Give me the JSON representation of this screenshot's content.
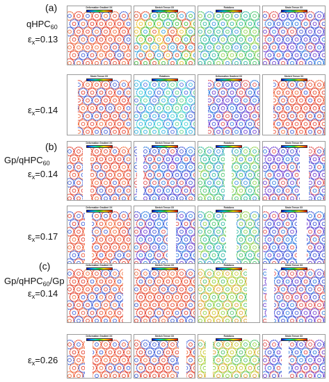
{
  "labels": {
    "a": "(a)",
    "b": "(b)",
    "c": "(c)",
    "a_name": "qHPC",
    "a_sub": "60",
    "a_strain1_sym": "ε",
    "a_strain1_sub": "x",
    "a_strain1_val": "=0.13",
    "a_strain2_sym": "ε",
    "a_strain2_sub": "x",
    "a_strain2_val": "=0.14",
    "b_name_pre": "Gp/qHPC",
    "b_sub": "60",
    "b_strain1_sym": "ε",
    "b_strain1_sub": "x",
    "b_strain1_val": "=0.14",
    "b_strain2_sym": "ε",
    "b_strain2_sub": "x",
    "b_strain2_val": "=0.17",
    "c_name_pre": "Gp/qHPC",
    "c_sub": "60",
    "c_name_post": "/Gp",
    "c_strain1_sym": "ε",
    "c_strain1_sub": "x",
    "c_strain1_val": "=0.14",
    "c_strain2_sym": "ε",
    "c_strain2_sub": "x",
    "c_strain2_val": "=0.26"
  },
  "rows": [
    {
      "titles": [
        "Deformation Gradient XX",
        "Stretch Tensor XX",
        "Rotations",
        "Strain Tensor XX"
      ],
      "themes": [
        "red",
        "green",
        "teal",
        "blue"
      ]
    },
    {
      "titles": [
        "Strain Tensor XX",
        "Rotations",
        "Deformation Gradient XX",
        "Stretch Tensor XX"
      ],
      "themes": [
        "red",
        "cyan",
        "blue",
        "red"
      ]
    },
    {
      "titles": [
        "Deformation Gradient XX",
        "Stretch Tensor XX",
        "Rotations",
        "Strain Tensor XX"
      ],
      "themes": [
        "red",
        "blue",
        "teal",
        "blue"
      ]
    },
    {
      "titles": [
        "Deformation Gradient XX",
        "Stretch Tensor XX",
        "Rotations",
        "Strain Tensor XX"
      ],
      "themes": [
        "red",
        "blue",
        "teal",
        "blue"
      ]
    },
    {
      "titles": [
        "Deformation Gradient XX",
        "Stretch Tensor XX",
        "Rotations",
        "Strain Tensor XX"
      ],
      "themes": [
        "red",
        "red",
        "yellow",
        "blue"
      ]
    },
    {
      "titles": [
        "Deformation Gradient XX",
        "Stretch Tensor XX",
        "Rotations",
        "Strain Tensor XX"
      ],
      "themes": [
        "red",
        "red",
        "yellow",
        "blue"
      ]
    }
  ],
  "theme_colors": {
    "red": [
      "#e23b2a",
      "#f06a3a",
      "#3b5bd6",
      "#e84a2e"
    ],
    "green": [
      "#3fbf3f",
      "#e6c02a",
      "#e04a2a",
      "#2a9ee0"
    ],
    "teal": [
      "#2ab8a0",
      "#46c46a",
      "#3a8ee0",
      "#8fd04a"
    ],
    "blue": [
      "#3a4fd6",
      "#6a3ad0",
      "#e04a4a",
      "#2a7ae0"
    ],
    "cyan": [
      "#2ab0e0",
      "#3ad0d0",
      "#4a6ae0",
      "#5ad08a"
    ],
    "yellow": [
      "#c8c82a",
      "#8ad03a",
      "#e0a02a",
      "#4ac06a"
    ]
  }
}
